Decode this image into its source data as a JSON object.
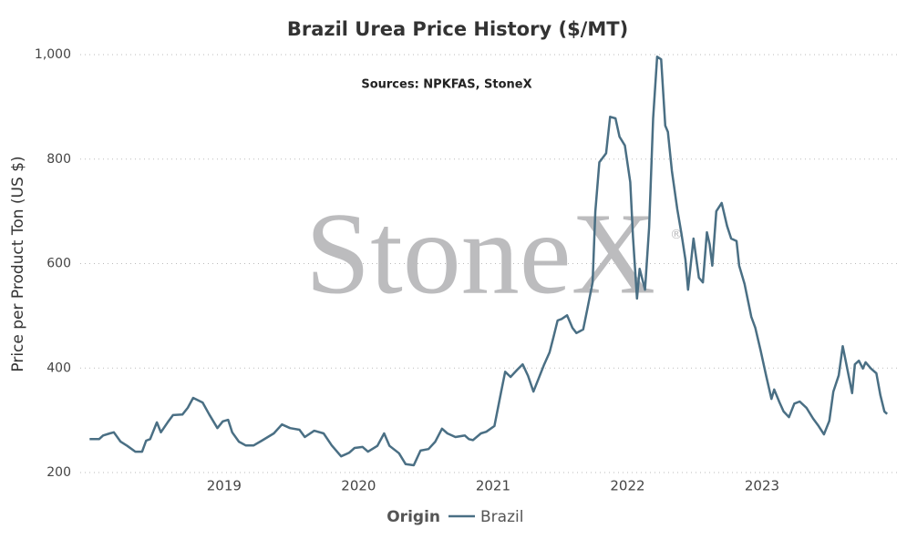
{
  "chart_data": {
    "type": "line",
    "title": "Brazil Urea Price History ($/MT)",
    "subtitle": "Sources: NPKFAS, StoneX",
    "watermark": "StoneX",
    "watermark_symbol": "®",
    "y_label": "Price per Product Ton (US $)",
    "legend_title": "Origin",
    "x": [
      2018.0,
      2018.07,
      2018.1,
      2018.15,
      2018.18,
      2018.23,
      2018.28,
      2018.34,
      2018.39,
      2018.42,
      2018.45,
      2018.5,
      2018.53,
      2018.58,
      2018.62,
      2018.69,
      2018.73,
      2018.77,
      2018.84,
      2018.89,
      2018.95,
      2018.99,
      2019.03,
      2019.06,
      2019.11,
      2019.16,
      2019.22,
      2019.28,
      2019.37,
      2019.43,
      2019.49,
      2019.56,
      2019.6,
      2019.67,
      2019.74,
      2019.8,
      2019.87,
      2019.93,
      2019.97,
      2020.03,
      2020.07,
      2020.14,
      2020.19,
      2020.23,
      2020.3,
      2020.35,
      2020.41,
      2020.46,
      2020.52,
      2020.57,
      2020.62,
      2020.66,
      2020.72,
      2020.79,
      2020.82,
      2020.85,
      2020.91,
      2020.95,
      2021.01,
      2021.06,
      2021.09,
      2021.13,
      2021.18,
      2021.22,
      2021.26,
      2021.3,
      2021.34,
      2021.38,
      2021.42,
      2021.45,
      2021.48,
      2021.51,
      2021.55,
      2021.59,
      2021.62,
      2021.67,
      2021.7,
      2021.74,
      2021.76,
      2021.79,
      2021.84,
      2021.87,
      2021.91,
      2021.94,
      2021.98,
      2022.02,
      2022.04,
      2022.07,
      2022.09,
      2022.13,
      2022.16,
      2022.19,
      2022.22,
      2022.25,
      2022.28,
      2022.3,
      2022.33,
      2022.37,
      2022.4,
      2022.43,
      2022.45,
      2022.49,
      2022.53,
      2022.56,
      2022.59,
      2022.61,
      2022.63,
      2022.66,
      2022.7,
      2022.74,
      2022.77,
      2022.81,
      2022.83,
      2022.87,
      2022.92,
      2022.95,
      2022.99,
      2023.03,
      2023.07,
      2023.09,
      2023.13,
      2023.16,
      2023.2,
      2023.24,
      2023.28,
      2023.33,
      2023.38,
      2023.42,
      2023.46,
      2023.5,
      2023.53,
      2023.57,
      2023.6,
      2023.62,
      2023.67,
      2023.69,
      2023.72,
      2023.75,
      2023.77,
      2023.81,
      2023.85,
      2023.88,
      2023.91,
      2023.93
    ],
    "series": [
      {
        "name": "Brazil",
        "color": "#4a6f84",
        "values": [
          264,
          264,
          271,
          275,
          277,
          259,
          251,
          240,
          240,
          261,
          264,
          296,
          277,
          296,
          310,
          311,
          324,
          343,
          334,
          311,
          285,
          298,
          301,
          277,
          259,
          252,
          252,
          261,
          275,
          292,
          285,
          282,
          268,
          280,
          275,
          252,
          231,
          238,
          247,
          249,
          240,
          251,
          275,
          251,
          237,
          216,
          214,
          242,
          245,
          259,
          284,
          275,
          268,
          271,
          264,
          262,
          275,
          278,
          289,
          355,
          393,
          383,
          397,
          407,
          385,
          355,
          381,
          407,
          430,
          460,
          491,
          494,
          501,
          477,
          467,
          474,
          512,
          564,
          700,
          794,
          811,
          881,
          878,
          843,
          826,
          756,
          651,
          533,
          590,
          550,
          669,
          878,
          996,
          991,
          864,
          852,
          777,
          704,
          658,
          608,
          550,
          648,
          573,
          564,
          660,
          637,
          596,
          700,
          716,
          672,
          648,
          643,
          596,
          561,
          498,
          477,
          433,
          386,
          341,
          359,
          334,
          317,
          306,
          332,
          336,
          324,
          303,
          289,
          273,
          299,
          355,
          386,
          442,
          416,
          352,
          407,
          414,
          399,
          411,
          399,
          390,
          348,
          317,
          312
        ]
      }
    ],
    "xlim": [
      2017.93,
      2024.01
    ],
    "xticks": [
      2019,
      2020,
      2021,
      2022,
      2023
    ],
    "ylim": [
      200,
      1000
    ],
    "yticks": [
      200,
      400,
      600,
      800,
      {
        "value": 1000,
        "label": "1,000"
      }
    ],
    "grid": true
  }
}
